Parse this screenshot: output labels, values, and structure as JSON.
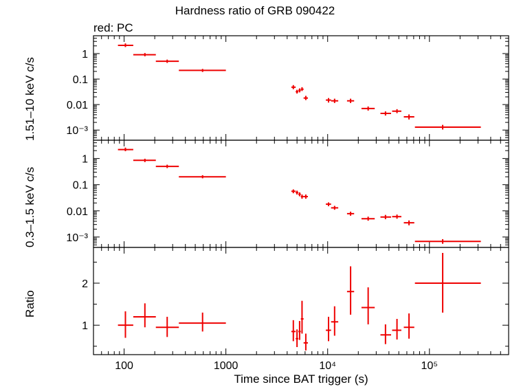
{
  "title": "Hardness ratio of GRB 090422",
  "legend_note": "red: PC",
  "colors": {
    "data": "#ee0000",
    "axes": "#000000"
  },
  "chart_data": [
    {
      "type": "scatter",
      "panel": "top",
      "ylabel": "1.51–10 keV c/s",
      "xscale": "log",
      "yscale": "log",
      "xlim": [
        50,
        600000
      ],
      "ylim": [
        0.0004,
        5
      ],
      "yticks": [
        {
          "v": 1,
          "label": "1"
        },
        {
          "v": 0.1,
          "label": "0.1"
        },
        {
          "v": 0.01,
          "label": "0.01"
        },
        {
          "v": 0.001,
          "label": "10⁻³"
        }
      ],
      "points": [
        {
          "x": 103,
          "xlo": 87,
          "xhi": 123,
          "y": 2.1,
          "ylo": 1.8,
          "yhi": 2.5
        },
        {
          "x": 160,
          "xlo": 123,
          "xhi": 205,
          "y": 0.9,
          "ylo": 0.78,
          "yhi": 1.05
        },
        {
          "x": 265,
          "xlo": 205,
          "xhi": 345,
          "y": 0.5,
          "ylo": 0.43,
          "yhi": 0.58
        },
        {
          "x": 590,
          "xlo": 345,
          "xhi": 1000,
          "y": 0.22,
          "ylo": 0.19,
          "yhi": 0.25
        },
        {
          "x": 4600,
          "xlo": 4400,
          "xhi": 4850,
          "y": 0.048,
          "ylo": 0.04,
          "yhi": 0.058
        },
        {
          "x": 5000,
          "xlo": 4850,
          "xhi": 5150,
          "y": 0.032,
          "ylo": 0.027,
          "yhi": 0.038
        },
        {
          "x": 5300,
          "xlo": 5150,
          "xhi": 5450,
          "y": 0.036,
          "ylo": 0.03,
          "yhi": 0.043
        },
        {
          "x": 5600,
          "xlo": 5450,
          "xhi": 5800,
          "y": 0.04,
          "ylo": 0.034,
          "yhi": 0.048
        },
        {
          "x": 6100,
          "xlo": 5800,
          "xhi": 6400,
          "y": 0.018,
          "ylo": 0.015,
          "yhi": 0.022
        },
        {
          "x": 10200,
          "xlo": 9600,
          "xhi": 10800,
          "y": 0.015,
          "ylo": 0.012,
          "yhi": 0.018
        },
        {
          "x": 11700,
          "xlo": 10800,
          "xhi": 12700,
          "y": 0.014,
          "ylo": 0.0115,
          "yhi": 0.017
        },
        {
          "x": 16800,
          "xlo": 15500,
          "xhi": 18200,
          "y": 0.014,
          "ylo": 0.0115,
          "yhi": 0.017
        },
        {
          "x": 25000,
          "xlo": 21500,
          "xhi": 29000,
          "y": 0.007,
          "ylo": 0.0058,
          "yhi": 0.0084
        },
        {
          "x": 37000,
          "xlo": 33000,
          "xhi": 42000,
          "y": 0.0045,
          "ylo": 0.0037,
          "yhi": 0.0054
        },
        {
          "x": 48000,
          "xlo": 43000,
          "xhi": 53000,
          "y": 0.0055,
          "ylo": 0.0046,
          "yhi": 0.0066
        },
        {
          "x": 63000,
          "xlo": 56000,
          "xhi": 71000,
          "y": 0.0033,
          "ylo": 0.0026,
          "yhi": 0.0041
        },
        {
          "x": 135000,
          "xlo": 72000,
          "xhi": 320000,
          "y": 0.0013,
          "ylo": 0.00105,
          "yhi": 0.0016
        }
      ]
    },
    {
      "type": "scatter",
      "panel": "middle",
      "ylabel": "0.3–1.5 keV c/s",
      "xscale": "log",
      "yscale": "log",
      "xlim": [
        50,
        600000
      ],
      "ylim": [
        0.0004,
        5
      ],
      "yticks": [
        {
          "v": 1,
          "label": "1"
        },
        {
          "v": 0.1,
          "label": "0.1"
        },
        {
          "v": 0.01,
          "label": "0.01"
        },
        {
          "v": 0.001,
          "label": "10⁻³"
        }
      ],
      "points": [
        {
          "x": 103,
          "xlo": 87,
          "xhi": 123,
          "y": 2.2,
          "ylo": 1.9,
          "yhi": 2.6
        },
        {
          "x": 160,
          "xlo": 123,
          "xhi": 205,
          "y": 0.85,
          "ylo": 0.73,
          "yhi": 0.98
        },
        {
          "x": 265,
          "xlo": 205,
          "xhi": 345,
          "y": 0.5,
          "ylo": 0.43,
          "yhi": 0.58
        },
        {
          "x": 590,
          "xlo": 345,
          "xhi": 1000,
          "y": 0.2,
          "ylo": 0.175,
          "yhi": 0.23
        },
        {
          "x": 4600,
          "xlo": 4400,
          "xhi": 4850,
          "y": 0.056,
          "ylo": 0.047,
          "yhi": 0.066
        },
        {
          "x": 5000,
          "xlo": 4850,
          "xhi": 5150,
          "y": 0.05,
          "ylo": 0.042,
          "yhi": 0.059
        },
        {
          "x": 5300,
          "xlo": 5150,
          "xhi": 5450,
          "y": 0.043,
          "ylo": 0.036,
          "yhi": 0.051
        },
        {
          "x": 5600,
          "xlo": 5450,
          "xhi": 5800,
          "y": 0.035,
          "ylo": 0.029,
          "yhi": 0.042
        },
        {
          "x": 6100,
          "xlo": 5800,
          "xhi": 6400,
          "y": 0.035,
          "ylo": 0.029,
          "yhi": 0.042
        },
        {
          "x": 10200,
          "xlo": 9600,
          "xhi": 10800,
          "y": 0.018,
          "ylo": 0.015,
          "yhi": 0.021
        },
        {
          "x": 11700,
          "xlo": 10800,
          "xhi": 12700,
          "y": 0.013,
          "ylo": 0.011,
          "yhi": 0.0155
        },
        {
          "x": 16800,
          "xlo": 15500,
          "xhi": 18200,
          "y": 0.0078,
          "ylo": 0.0065,
          "yhi": 0.0093
        },
        {
          "x": 25000,
          "xlo": 21500,
          "xhi": 29000,
          "y": 0.005,
          "ylo": 0.0042,
          "yhi": 0.006
        },
        {
          "x": 37000,
          "xlo": 33000,
          "xhi": 42000,
          "y": 0.0058,
          "ylo": 0.0048,
          "yhi": 0.007
        },
        {
          "x": 48000,
          "xlo": 43000,
          "xhi": 53000,
          "y": 0.006,
          "ylo": 0.005,
          "yhi": 0.0072
        },
        {
          "x": 63000,
          "xlo": 56000,
          "xhi": 71000,
          "y": 0.0035,
          "ylo": 0.0028,
          "yhi": 0.0043
        },
        {
          "x": 135000,
          "xlo": 72000,
          "xhi": 320000,
          "y": 0.00068,
          "ylo": 0.00055,
          "yhi": 0.00083
        }
      ]
    },
    {
      "type": "scatter",
      "panel": "bottom",
      "ylabel": "Ratio",
      "xlabel": "Time since BAT trigger (s)",
      "xscale": "log",
      "yscale": "linear",
      "xlim": [
        50,
        600000
      ],
      "ylim": [
        0.3,
        2.85
      ],
      "yticks": [
        {
          "v": 1,
          "label": "1"
        },
        {
          "v": 2,
          "label": "2"
        }
      ],
      "xticks": [
        {
          "v": 100,
          "label": "100"
        },
        {
          "v": 1000,
          "label": "1000"
        },
        {
          "v": 10000,
          "label": "10⁴"
        },
        {
          "v": 100000,
          "label": "10⁵"
        }
      ],
      "points": [
        {
          "x": 103,
          "xlo": 87,
          "xhi": 123,
          "y": 1.0,
          "ylo": 0.7,
          "yhi": 1.33
        },
        {
          "x": 160,
          "xlo": 123,
          "xhi": 205,
          "y": 1.2,
          "ylo": 0.95,
          "yhi": 1.52
        },
        {
          "x": 265,
          "xlo": 205,
          "xhi": 345,
          "y": 0.95,
          "ylo": 0.72,
          "yhi": 1.2
        },
        {
          "x": 590,
          "xlo": 345,
          "xhi": 1000,
          "y": 1.05,
          "ylo": 0.85,
          "yhi": 1.3
        },
        {
          "x": 4600,
          "xlo": 4400,
          "xhi": 4850,
          "y": 0.85,
          "ylo": 0.62,
          "yhi": 1.12
        },
        {
          "x": 5000,
          "xlo": 4850,
          "xhi": 5150,
          "y": 0.68,
          "ylo": 0.48,
          "yhi": 0.9
        },
        {
          "x": 5300,
          "xlo": 5150,
          "xhi": 5450,
          "y": 0.85,
          "ylo": 0.65,
          "yhi": 1.1
        },
        {
          "x": 5600,
          "xlo": 5450,
          "xhi": 5800,
          "y": 1.15,
          "ylo": 0.8,
          "yhi": 1.58
        },
        {
          "x": 6100,
          "xlo": 5800,
          "xhi": 6400,
          "y": 0.58,
          "ylo": 0.4,
          "yhi": 0.8
        },
        {
          "x": 10200,
          "xlo": 9600,
          "xhi": 10800,
          "y": 0.88,
          "ylo": 0.62,
          "yhi": 1.2
        },
        {
          "x": 11700,
          "xlo": 10800,
          "xhi": 12700,
          "y": 1.08,
          "ylo": 0.75,
          "yhi": 1.45
        },
        {
          "x": 16800,
          "xlo": 15500,
          "xhi": 18200,
          "y": 1.8,
          "ylo": 1.25,
          "yhi": 2.4
        },
        {
          "x": 25000,
          "xlo": 21500,
          "xhi": 29000,
          "y": 1.42,
          "ylo": 1.02,
          "yhi": 1.9
        },
        {
          "x": 37000,
          "xlo": 33000,
          "xhi": 42000,
          "y": 0.77,
          "ylo": 0.55,
          "yhi": 1.02
        },
        {
          "x": 48000,
          "xlo": 43000,
          "xhi": 53000,
          "y": 0.88,
          "ylo": 0.66,
          "yhi": 1.15
        },
        {
          "x": 63000,
          "xlo": 56000,
          "xhi": 71000,
          "y": 0.95,
          "ylo": 0.68,
          "yhi": 1.28
        },
        {
          "x": 135000,
          "xlo": 72000,
          "xhi": 320000,
          "y": 2.0,
          "ylo": 1.3,
          "yhi": 2.72
        }
      ]
    }
  ]
}
